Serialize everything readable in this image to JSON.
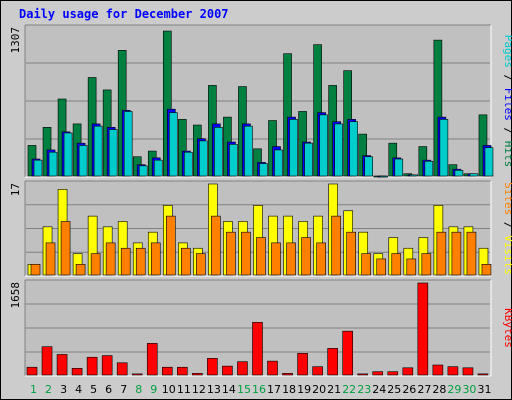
{
  "colors": {
    "title": "#0000ff",
    "pages": "#00cccc",
    "files": "#0000ff",
    "hits": "#008040",
    "sites": "#ff8000",
    "visits": "#ffff00",
    "kbytes": "#ff0000",
    "weekend": "#00a040",
    "plot_bg": "#c0c0c0",
    "grid": "#808080"
  },
  "chart_data": {
    "type": "bar",
    "title": "Daily usage for December 2007",
    "categories": [
      "1",
      "2",
      "3",
      "4",
      "5",
      "6",
      "7",
      "8",
      "9",
      "10",
      "11",
      "12",
      "13",
      "14",
      "15",
      "16",
      "17",
      "18",
      "19",
      "20",
      "21",
      "22",
      "23",
      "24",
      "25",
      "26",
      "27",
      "28",
      "29",
      "30",
      "31"
    ],
    "weekend_days": [
      "1",
      "2",
      "8",
      "9",
      "15",
      "16",
      "22",
      "23",
      "29",
      "30"
    ],
    "panels": [
      {
        "name": "usage",
        "ymax_label": "1307",
        "ylim": [
          0,
          1307
        ],
        "ylabel_parts": [
          {
            "text": "Pages",
            "color": "#00cccc"
          },
          {
            "text": " / ",
            "color": "#000000"
          },
          {
            "text": "Files",
            "color": "#0000ff"
          },
          {
            "text": " / ",
            "color": "#000000"
          },
          {
            "text": "Hits",
            "color": "#008040"
          }
        ],
        "series": [
          {
            "name": "Hits",
            "color": "#008040",
            "values": [
              270,
              430,
              680,
              460,
              870,
              760,
              1110,
              170,
              220,
              1280,
              500,
              450,
              800,
              520,
              790,
              240,
              490,
              1080,
              570,
              1160,
              800,
              930,
              370,
              0,
              290,
              20,
              260,
              1200,
              100,
              20,
              540
            ]
          },
          {
            "name": "Files",
            "color": "#0000ff",
            "values": [
              150,
              230,
              390,
              290,
              460,
              430,
              580,
              100,
              160,
              590,
              220,
              330,
              460,
              300,
              460,
              120,
              260,
              520,
              300,
              560,
              480,
              500,
              180,
              0,
              160,
              10,
              140,
              520,
              60,
              20,
              270
            ]
          },
          {
            "name": "Pages",
            "color": "#00cccc",
            "values": [
              140,
              210,
              380,
              270,
              440,
              410,
              570,
              90,
              140,
              560,
              210,
              310,
              430,
              280,
              440,
              110,
              230,
              500,
              290,
              540,
              460,
              480,
              170,
              0,
              150,
              10,
              130,
              500,
              50,
              20,
              250
            ]
          }
        ]
      },
      {
        "name": "visitors",
        "ymax_label": "17",
        "ylim": [
          0,
          17
        ],
        "ylabel_parts": [
          {
            "text": "Sites",
            "color": "#ff8000"
          },
          {
            "text": " / ",
            "color": "#000000"
          },
          {
            "text": "Visits",
            "color": "#ffff00"
          }
        ],
        "series": [
          {
            "name": "Visits",
            "color": "#ffff00",
            "values": [
              2,
              9,
              16,
              4,
              11,
              9,
              10,
              6,
              8,
              13,
              6,
              5,
              17,
              10,
              10,
              13,
              11,
              11,
              10,
              11,
              17,
              12,
              8,
              4,
              7,
              5,
              7,
              13,
              9,
              9,
              5
            ]
          },
          {
            "name": "Sites",
            "color": "#ff8000",
            "values": [
              2,
              6,
              10,
              2,
              4,
              6,
              5,
              5,
              6,
              11,
              5,
              4,
              11,
              8,
              8,
              7,
              6,
              6,
              7,
              6,
              11,
              8,
              4,
              3,
              4,
              3,
              4,
              8,
              8,
              8,
              2
            ]
          }
        ]
      },
      {
        "name": "traffic",
        "ymax_label": "1658",
        "ylim": [
          0,
          1658
        ],
        "ylabel_parts": [
          {
            "text": "KBytes",
            "color": "#ff0000"
          }
        ],
        "series": [
          {
            "name": "KBytes",
            "color": "#ff0000",
            "values": [
              140,
              510,
              370,
              120,
              320,
              350,
              220,
              20,
              570,
              140,
              140,
              30,
              300,
              160,
              240,
              950,
              250,
              30,
              390,
              150,
              480,
              790,
              20,
              60,
              60,
              130,
              1658,
              180,
              150,
              130,
              20
            ]
          }
        ]
      }
    ]
  }
}
